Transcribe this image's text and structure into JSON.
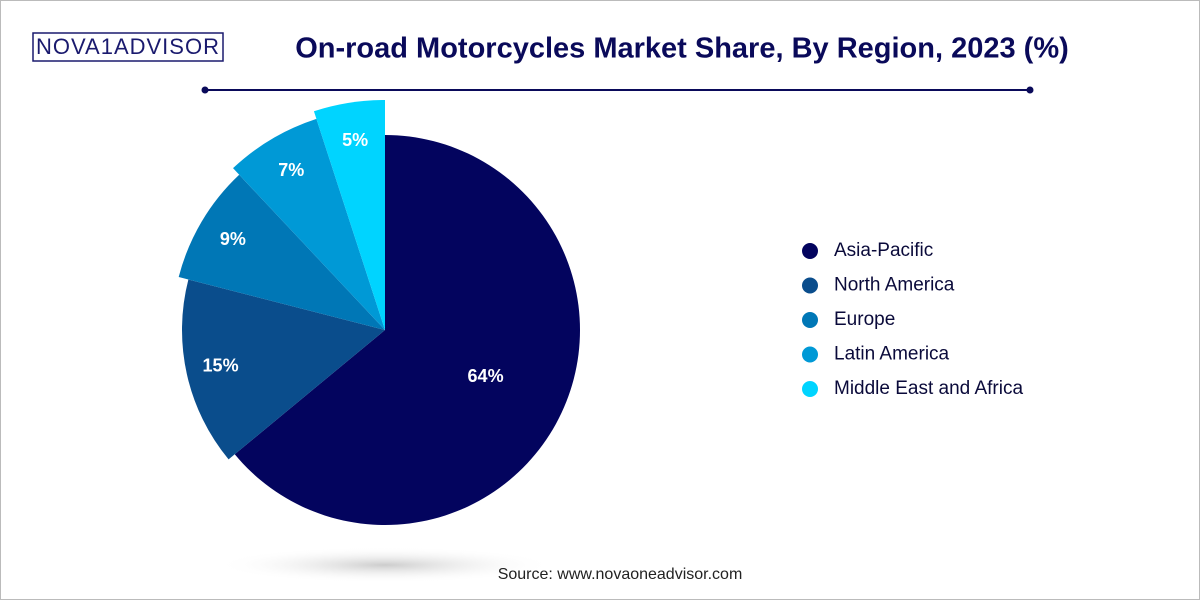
{
  "logo": "NOVA1ADVISOR",
  "chart_data": {
    "type": "pie",
    "title": "On-road Motorcycles Market Share, By Region, 2023 (%)",
    "categories": [
      "Asia-Pacific",
      "North America",
      "Europe",
      "Latin America",
      "Middle East and Africa"
    ],
    "values": [
      64,
      15,
      9,
      7,
      5
    ],
    "value_labels": [
      "64%",
      "15%",
      "9%",
      "7%",
      "5%"
    ],
    "colors": [
      "#03045e",
      "#0a4d8c",
      "#0077b6",
      "#0099d6",
      "#00d4ff"
    ],
    "legend": "right",
    "source": "Source: www.novaoneadvisor.com"
  }
}
